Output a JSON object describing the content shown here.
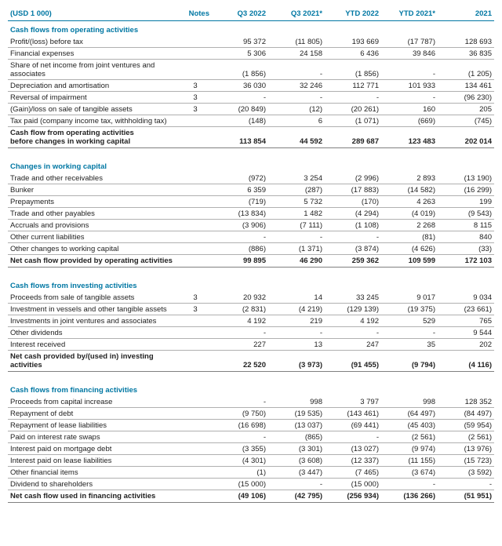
{
  "columns": [
    "(USD 1 000)",
    "Notes",
    "Q3 2022",
    "Q3 2021*",
    "YTD 2022",
    "YTD 2021*",
    "2021"
  ],
  "rows": [
    {
      "t": "section",
      "label": "Cash flows from operating activities"
    },
    {
      "t": "line",
      "label": "Profit/(loss) before tax",
      "c": [
        "",
        "95 372",
        "(11 805)",
        "193 669",
        "(17 787)",
        "128 693"
      ]
    },
    {
      "t": "line",
      "label": "Financial expenses",
      "c": [
        "",
        "5 306",
        "24 158",
        "6 436",
        "39 846",
        "36 835"
      ]
    },
    {
      "t": "line",
      "label": "Share of net income from joint ventures and associates",
      "c": [
        "",
        "(1 856)",
        "-",
        "(1 856)",
        "-",
        "(1 205)"
      ]
    },
    {
      "t": "line",
      "label": "Depreciation and amortisation",
      "c": [
        "3",
        "36 030",
        "32 246",
        "112 771",
        "101 933",
        "134 461"
      ]
    },
    {
      "t": "line",
      "label": "Reversal of impairment",
      "c": [
        "3",
        "-",
        "-",
        "-",
        "-",
        "(96 230)"
      ]
    },
    {
      "t": "line",
      "label": "(Gain)/loss on sale of tangible assets",
      "c": [
        "3",
        "(20 849)",
        "(12)",
        "(20 261)",
        "160",
        "205"
      ]
    },
    {
      "t": "line",
      "label": "Tax paid (company income tax, withholding tax)",
      "c": [
        "",
        "(148)",
        "6",
        "(1 071)",
        "(669)",
        "(745)"
      ]
    },
    {
      "t": "total",
      "label": "Cash flow from operating activities<br>before changes in working capital",
      "c": [
        "",
        "113 854",
        "44 592",
        "289 687",
        "123 483",
        "202 014"
      ]
    },
    {
      "t": "spacer"
    },
    {
      "t": "section",
      "label": "Changes in working capital"
    },
    {
      "t": "line",
      "label": "Trade and other receivables",
      "c": [
        "",
        "(972)",
        "3 254",
        "(2 996)",
        "2 893",
        "(13 190)"
      ]
    },
    {
      "t": "line",
      "label": "Bunker",
      "c": [
        "",
        "6 359",
        "(287)",
        "(17 883)",
        "(14 582)",
        "(16 299)"
      ]
    },
    {
      "t": "line",
      "label": "Prepayments",
      "c": [
        "",
        "(719)",
        "5 732",
        "(170)",
        "4 263",
        "199"
      ]
    },
    {
      "t": "line",
      "label": "Trade and other payables",
      "c": [
        "",
        "(13 834)",
        "1 482",
        "(4 294)",
        "(4 019)",
        "(9 543)"
      ]
    },
    {
      "t": "line",
      "label": "Accruals and provisions",
      "c": [
        "",
        "(3 906)",
        "(7 111)",
        "(1 108)",
        "2 268",
        "8 115"
      ]
    },
    {
      "t": "line",
      "label": "Other current liabilities",
      "c": [
        "",
        "-",
        "-",
        "-",
        "(81)",
        "840"
      ]
    },
    {
      "t": "line",
      "label": "Other changes to working capital",
      "c": [
        "",
        "(886)",
        "(1 371)",
        "(3 874)",
        "(4 626)",
        "(33)"
      ]
    },
    {
      "t": "total",
      "label": "Net cash flow provided by operating activities",
      "c": [
        "",
        "99 895",
        "46 290",
        "259 362",
        "109 599",
        "172 103"
      ]
    },
    {
      "t": "spacer"
    },
    {
      "t": "section",
      "label": "Cash flows from investing activities"
    },
    {
      "t": "line",
      "label": "Proceeds from sale of tangible assets",
      "c": [
        "3",
        "20 932",
        "14",
        "33 245",
        "9 017",
        "9 034"
      ]
    },
    {
      "t": "line",
      "label": "Investment in vessels and other tangible assets",
      "c": [
        "3",
        "(2 831)",
        "(4 219)",
        "(129 139)",
        "(19 375)",
        "(23 661)"
      ]
    },
    {
      "t": "line",
      "label": "Investments in joint ventures and associates",
      "c": [
        "",
        "4 192",
        "219",
        "4 192",
        "529",
        "765"
      ]
    },
    {
      "t": "line",
      "label": "Other dividends",
      "c": [
        "",
        "-",
        "-",
        "-",
        "-",
        "9 544"
      ]
    },
    {
      "t": "line",
      "label": "Interest received",
      "c": [
        "",
        "227",
        "13",
        "247",
        "35",
        "202"
      ]
    },
    {
      "t": "total",
      "label": "Net cash provided by/(used in) investing activities",
      "c": [
        "",
        "22 520",
        "(3 973)",
        "(91 455)",
        "(9 794)",
        "(4 116)"
      ]
    },
    {
      "t": "spacer"
    },
    {
      "t": "section",
      "label": "Cash flows from financing activities"
    },
    {
      "t": "line",
      "label": "Proceeds from capital increase",
      "c": [
        "",
        "-",
        "998",
        "3 797",
        "998",
        "128 352"
      ]
    },
    {
      "t": "line",
      "label": "Repayment of debt",
      "c": [
        "",
        "(9 750)",
        "(19 535)",
        "(143 461)",
        "(64 497)",
        "(84 497)"
      ]
    },
    {
      "t": "line",
      "label": "Repayment of lease liabilities",
      "c": [
        "",
        "(16 698)",
        "(13 037)",
        "(69 441)",
        "(45 403)",
        "(59 954)"
      ]
    },
    {
      "t": "line",
      "label": "Paid on interest rate swaps",
      "c": [
        "",
        "-",
        "(865)",
        "-",
        "(2 561)",
        "(2 561)"
      ]
    },
    {
      "t": "line",
      "label": "Interest paid on mortgage debt",
      "c": [
        "",
        "(3 355)",
        "(3 301)",
        "(13 027)",
        "(9 974)",
        "(13 976)"
      ]
    },
    {
      "t": "line",
      "label": "Interest paid on lease liabilities",
      "c": [
        "",
        "(4 301)",
        "(3 608)",
        "(12 337)",
        "(11 155)",
        "(15 723)"
      ]
    },
    {
      "t": "line",
      "label": "Other financial items",
      "c": [
        "",
        "(1)",
        "(3 447)",
        "(7 465)",
        "(3 674)",
        "(3 592)"
      ]
    },
    {
      "t": "line",
      "label": "Dividend to shareholders",
      "c": [
        "",
        "(15 000)",
        "-",
        "(15 000)",
        "-",
        "-"
      ]
    },
    {
      "t": "total",
      "label": "Net cash flow used in financing activities",
      "c": [
        "",
        "(49 106)",
        "(42 795)",
        "(256 934)",
        "(136 266)",
        "(51 951)"
      ]
    }
  ]
}
